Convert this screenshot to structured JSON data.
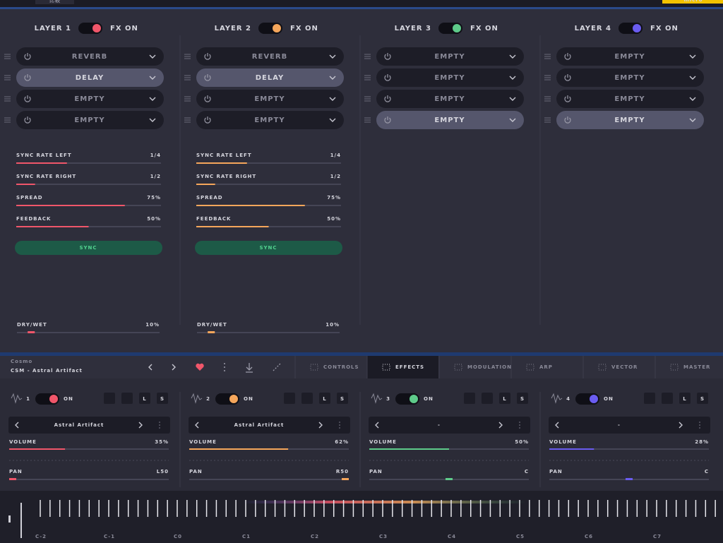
{
  "top_bar": {
    "tab": "比較",
    "badge": "micro"
  },
  "fx_layers": [
    {
      "title": "LAYER 1",
      "color": "#f0566a",
      "fx_label": "FX ON",
      "slots": [
        {
          "name": "REVERB"
        },
        {
          "name": "DELAY",
          "selected": true
        },
        {
          "name": "EMPTY"
        },
        {
          "name": "EMPTY"
        }
      ],
      "params": [
        {
          "label": "SYNC RATE LEFT",
          "setting": "1/4",
          "position": 35
        },
        {
          "label": "SYNC RATE RIGHT",
          "setting": "1/2",
          "position": 13
        },
        {
          "label": "SPREAD",
          "value": 75,
          "value_label": "75%"
        },
        {
          "label": "FEEDBACK",
          "value": 50,
          "value_label": "50%"
        }
      ],
      "sync_button": "SYNC",
      "dry_wet": {
        "label": "DRY/WET",
        "value": 10,
        "value_label": "10%"
      }
    },
    {
      "title": "LAYER 2",
      "color": "#f5a65b",
      "fx_label": "FX ON",
      "slots": [
        {
          "name": "REVERB"
        },
        {
          "name": "DELAY",
          "selected": true
        },
        {
          "name": "EMPTY"
        },
        {
          "name": "EMPTY"
        }
      ],
      "params": [
        {
          "label": "SYNC RATE LEFT",
          "setting": "1/4",
          "position": 35
        },
        {
          "label": "SYNC RATE RIGHT",
          "setting": "1/2",
          "position": 13
        },
        {
          "label": "SPREAD",
          "value": 75,
          "value_label": "75%"
        },
        {
          "label": "FEEDBACK",
          "value": 50,
          "value_label": "50%"
        }
      ],
      "sync_button": "SYNC",
      "dry_wet": {
        "label": "DRY/WET",
        "value": 10,
        "value_label": "10%"
      }
    },
    {
      "title": "LAYER 3",
      "color": "#5ecb8a",
      "fx_label": "FX ON",
      "slots": [
        {
          "name": "EMPTY"
        },
        {
          "name": "EMPTY"
        },
        {
          "name": "EMPTY"
        },
        {
          "name": "EMPTY",
          "selected": true
        }
      ]
    },
    {
      "title": "LAYER 4",
      "color": "#6a5cf0",
      "fx_label": "FX ON",
      "slots": [
        {
          "name": "EMPTY"
        },
        {
          "name": "EMPTY"
        },
        {
          "name": "EMPTY"
        },
        {
          "name": "EMPTY",
          "selected": true
        }
      ]
    }
  ],
  "preset": {
    "bank": "Cosmo",
    "name": "CSM - Astral Artifact"
  },
  "tabs": [
    {
      "label": "CONTROLS"
    },
    {
      "label": "EFFECTS",
      "active": true
    },
    {
      "label": "MODULATION"
    },
    {
      "label": "ARP"
    },
    {
      "label": "VECTOR"
    },
    {
      "label": "MASTER"
    }
  ],
  "strips": [
    {
      "number": 1,
      "toggle_label": "ON",
      "buttons": [
        "L",
        "S"
      ],
      "preset": "Astral Artifact",
      "volume": {
        "label": "VOLUME",
        "value": 35,
        "value_label": "35%"
      },
      "pan": {
        "label": "PAN",
        "value": -50,
        "value_label": "L50"
      }
    },
    {
      "number": 2,
      "toggle_label": "ON",
      "buttons": [
        "L",
        "S"
      ],
      "preset": "Astral Artifact",
      "volume": {
        "label": "VOLUME",
        "value": 62,
        "value_label": "62%"
      },
      "pan": {
        "label": "PAN",
        "value": 50,
        "value_label": "R50"
      }
    },
    {
      "number": 3,
      "toggle_label": "ON",
      "buttons": [
        "L",
        "S"
      ],
      "preset": "-",
      "volume": {
        "label": "VOLUME",
        "value": 50,
        "value_label": "50%"
      },
      "pan": {
        "label": "PAN",
        "value": 0,
        "value_label": "C"
      }
    },
    {
      "number": 4,
      "toggle_label": "ON",
      "buttons": [
        "L",
        "S"
      ],
      "preset": "-",
      "volume": {
        "label": "VOLUME",
        "value": 28,
        "value_label": "28%"
      },
      "pan": {
        "label": "PAN",
        "value": 0,
        "value_label": "C"
      }
    }
  ],
  "pan_range": [
    -50,
    50
  ],
  "keyboard": {
    "octaves": [
      "C-2",
      "C-1",
      "C0",
      "C1",
      "C2",
      "C3",
      "C4",
      "C5",
      "C6",
      "C7"
    ]
  }
}
